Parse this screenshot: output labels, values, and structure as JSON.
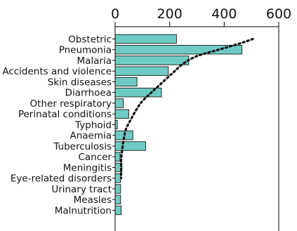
{
  "chart_data": {
    "type": "bar",
    "orientation": "horizontal",
    "title": "",
    "xlabel": "",
    "ylabel": "",
    "xlim": [
      0,
      600
    ],
    "x_ticks": [
      "0",
      "200",
      "400",
      "600"
    ],
    "grid": false,
    "categories": [
      "Obstetric",
      "Pneumonia",
      "Malaria",
      "Accidents and violence",
      "Skin diseases",
      "Diarrhoea",
      "Other respiratory",
      "Perinatal conditions",
      "Typhoid",
      "Anaemia",
      "Tuberculosis",
      "Cancer",
      "Meningitis",
      "Eye-related disorders",
      "Urinary tract",
      "Measles",
      "Malnutrition"
    ],
    "values": [
      225,
      465,
      270,
      195,
      80,
      170,
      30,
      50,
      8,
      65,
      112,
      18,
      25,
      20,
      20,
      20,
      22
    ],
    "trend_line": {
      "style": "dotted",
      "x": [
        505,
        460,
        380,
        300,
        250,
        210,
        150,
        100,
        78,
        58,
        40,
        32,
        26,
        22,
        22,
        22
      ],
      "y_category_index": [
        0,
        0.4,
        1,
        1.6,
        2.3,
        3.2,
        4.6,
        5.8,
        6.6,
        7.5,
        8.4,
        9.3,
        10.3,
        11.3,
        12.3,
        13
      ]
    },
    "bar_color": "#6ecbc3"
  }
}
